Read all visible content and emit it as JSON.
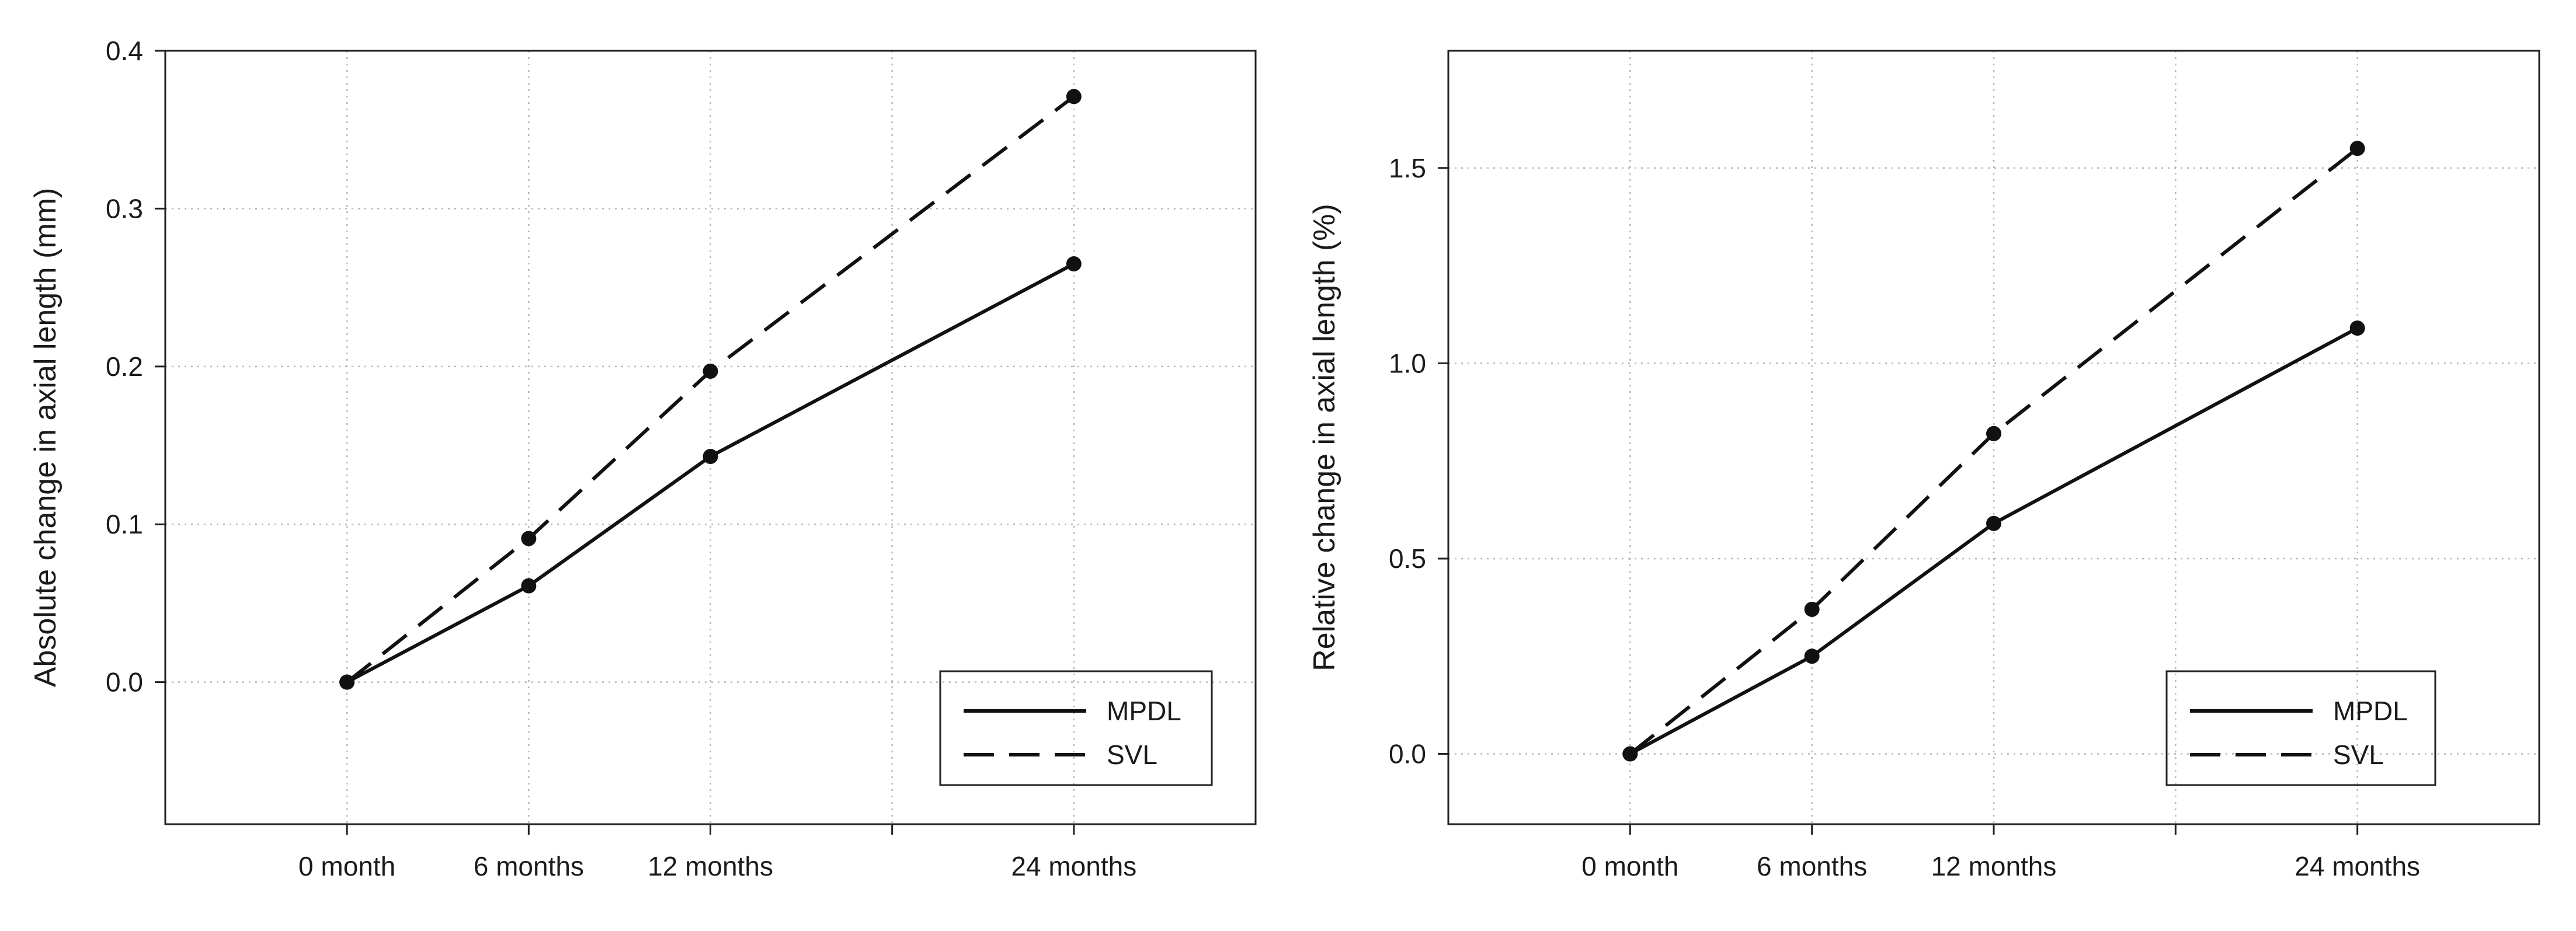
{
  "chart_data": [
    {
      "type": "line",
      "categories": [
        "0 month",
        "6 months",
        "12 months",
        "24 months"
      ],
      "x": [
        0,
        6,
        12,
        24
      ],
      "xlim": [
        -6,
        30
      ],
      "x_extra_ticks": [
        18
      ],
      "xlabel": "",
      "ylabel": "Absolute change in axial length (mm)",
      "ylim": [
        -0.09,
        0.4
      ],
      "yticks": [
        0.0,
        0.1,
        0.2,
        0.3,
        0.4
      ],
      "ytick_labels": [
        "0.0",
        "0.1",
        "0.2",
        "0.3",
        "0.4"
      ],
      "grid": true,
      "legend_position": "bottom-right",
      "series": [
        {
          "name": "MPDL",
          "style": "solid",
          "values": [
            0.0,
            0.061,
            0.143,
            0.265
          ]
        },
        {
          "name": "SVL",
          "style": "dashed",
          "values": [
            0.0,
            0.091,
            0.197,
            0.371
          ]
        }
      ]
    },
    {
      "type": "line",
      "categories": [
        "0 month",
        "6 months",
        "12 months",
        "24 months"
      ],
      "x": [
        0,
        6,
        12,
        24
      ],
      "xlim": [
        -6,
        30
      ],
      "x_extra_ticks": [
        18
      ],
      "xlabel": "",
      "ylabel": "Relative change in axial length (%)",
      "ylim": [
        -0.18,
        1.8
      ],
      "yticks": [
        0.0,
        0.5,
        1.0,
        1.5
      ],
      "ytick_labels": [
        "0.0",
        "0.5",
        "1.0",
        "1.5"
      ],
      "grid": true,
      "legend_position": "bottom-right",
      "series": [
        {
          "name": "MPDL",
          "style": "solid",
          "values": [
            0.0,
            0.25,
            0.59,
            1.09
          ]
        },
        {
          "name": "SVL",
          "style": "dashed",
          "values": [
            0.0,
            0.37,
            0.82,
            1.55
          ]
        }
      ]
    }
  ]
}
